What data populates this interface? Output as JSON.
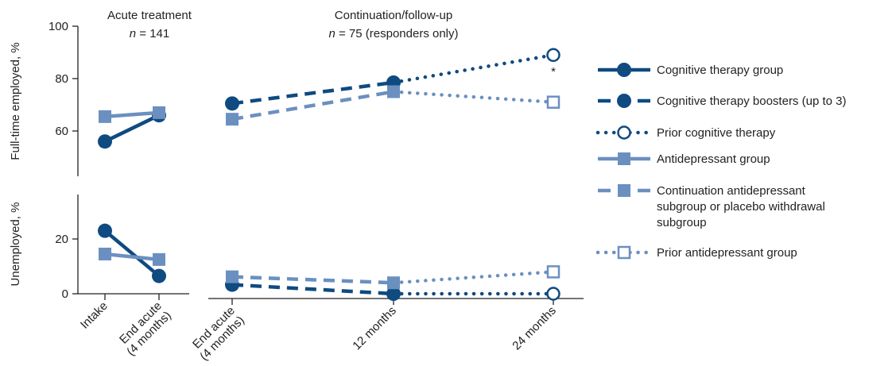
{
  "chart_data": {
    "type": "line",
    "colors": {
      "cognitive": "#0f4a80",
      "antidepressant": "#6b90c0"
    },
    "headers": {
      "acute": {
        "title": "Acute treatment",
        "n_label": "n",
        "n_value": " = 141"
      },
      "continuation": {
        "title": "Continuation/follow-up",
        "n_label": "n",
        "n_value": " = 75 (responders only)"
      }
    },
    "x_tick_labels": {
      "intake": [
        "Intake"
      ],
      "end_acute_left": [
        "End acute",
        "(4 months)"
      ],
      "end_acute_right": [
        "End acute",
        "(4 months)"
      ],
      "m12": [
        "12 months"
      ],
      "m24": [
        "24 months"
      ]
    },
    "panels": [
      {
        "id": "employed",
        "ylabel": "Full-time employed, %",
        "ylim": [
          45,
          100
        ],
        "yticks": [
          "60",
          "80",
          "100"
        ],
        "annotation": "*",
        "series": [
          {
            "name": "Cognitive therapy group",
            "style": "solid",
            "marker": "circle",
            "color": "cognitive",
            "x": [
              "Intake",
              "End acute (4 months)"
            ],
            "y": [
              56,
              66
            ]
          },
          {
            "name": "Antidepressant group",
            "style": "solid",
            "marker": "square",
            "color": "antidepressant",
            "x": [
              "Intake",
              "End acute (4 months)"
            ],
            "y": [
              65.5,
              67
            ]
          },
          {
            "name": "Cognitive therapy boosters (up to 3)",
            "style": "dashed",
            "marker": "circle",
            "color": "cognitive",
            "x": [
              "End acute (4 months)",
              "12 months"
            ],
            "y": [
              70.5,
              78.5
            ]
          },
          {
            "name": "Continuation antidepressant subgroup or placebo withdrawal subgroup",
            "style": "dashed",
            "marker": "square",
            "color": "antidepressant",
            "x": [
              "End acute (4 months)",
              "12 months"
            ],
            "y": [
              64.5,
              75
            ]
          },
          {
            "name": "Prior cognitive therapy",
            "style": "dotted",
            "marker": "open-circle",
            "color": "cognitive",
            "x": [
              "12 months",
              "24 months"
            ],
            "y": [
              78.5,
              89
            ]
          },
          {
            "name": "Prior antidepressant group",
            "style": "dotted",
            "marker": "open-square",
            "color": "antidepressant",
            "x": [
              "12 months",
              "24 months"
            ],
            "y": [
              75,
              71
            ]
          }
        ]
      },
      {
        "id": "unemployed",
        "ylabel": "Unemployed, %",
        "ylim": [
          0,
          35
        ],
        "yticks": [
          "0",
          "20"
        ],
        "series": [
          {
            "name": "Cognitive therapy group",
            "style": "solid",
            "marker": "circle",
            "color": "cognitive",
            "x": [
              "Intake",
              "End acute (4 months)"
            ],
            "y": [
              23,
              6.5
            ]
          },
          {
            "name": "Antidepressant group",
            "style": "solid",
            "marker": "square",
            "color": "antidepressant",
            "x": [
              "Intake",
              "End acute (4 months)"
            ],
            "y": [
              14.5,
              12.5
            ]
          },
          {
            "name": "Cognitive therapy boosters (up to 3)",
            "style": "dashed",
            "marker": "circle",
            "color": "cognitive",
            "x": [
              "End acute (4 months)",
              "12 months"
            ],
            "y": [
              3.3,
              0
            ]
          },
          {
            "name": "Continuation antidepressant subgroup or placebo withdrawal subgroup",
            "style": "dashed",
            "marker": "square",
            "color": "antidepressant",
            "x": [
              "End acute (4 months)",
              "12 months"
            ],
            "y": [
              6.2,
              4
            ]
          },
          {
            "name": "Prior cognitive therapy",
            "style": "dotted",
            "marker": "open-circle",
            "color": "cognitive",
            "x": [
              "12 months",
              "24 months"
            ],
            "y": [
              0,
              0
            ]
          },
          {
            "name": "Prior antidepressant group",
            "style": "dotted",
            "marker": "open-square",
            "color": "antidepressant",
            "x": [
              "12 months",
              "24 months"
            ],
            "y": [
              4,
              8
            ]
          }
        ]
      }
    ],
    "legend": {
      "position": "right",
      "entries": [
        {
          "lines": [
            "Cognitive therapy group"
          ],
          "style": "solid",
          "marker": "circle",
          "color": "cognitive"
        },
        {
          "lines": [
            "Cognitive therapy boosters (up to 3)"
          ],
          "style": "dashed",
          "marker": "circle",
          "color": "cognitive"
        },
        {
          "lines": [
            "Prior cognitive therapy"
          ],
          "style": "dotted",
          "marker": "open-circle",
          "color": "cognitive"
        },
        {
          "lines": [
            "Antidepressant group"
          ],
          "style": "solid",
          "marker": "square",
          "color": "antidepressant"
        },
        {
          "lines": [
            "Continuation antidepressant",
            "subgroup or placebo withdrawal",
            "subgroup"
          ],
          "style": "dashed",
          "marker": "square",
          "color": "antidepressant"
        },
        {
          "lines": [
            "Prior antidepressant group"
          ],
          "style": "dotted",
          "marker": "open-square",
          "color": "antidepressant"
        }
      ]
    }
  }
}
